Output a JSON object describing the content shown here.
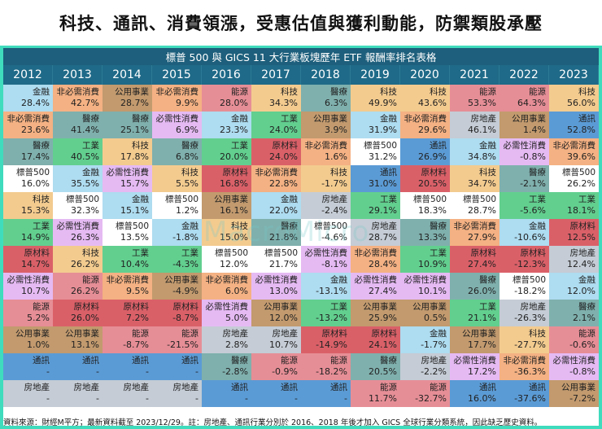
{
  "title": "科技、通訊、消費領漲，受惠估值與獲利動能，防禦類股承壓",
  "subtitle": "標普 500 與 GICS 11 大行業板塊歷年 ETF 報酬率排名表格",
  "watermark": "MacroMicro",
  "years": [
    "2012",
    "2013",
    "2014",
    "2015",
    "2016",
    "2017",
    "2018",
    "2019",
    "2020",
    "2021",
    "2022",
    "2023"
  ],
  "sector_colors": {
    "金融": "#aedcf0",
    "非必需消費": "#f4b183",
    "公用事業": "#c29a6e",
    "能源": "#e68e96",
    "科技": "#f3cb8f",
    "醫療": "#7fb0ad",
    "必需性消費": "#e5baf3",
    "工業": "#62cf8f",
    "原材料": "#da6068",
    "標普500": "#ffffff",
    "通訊": "#5b9bd5",
    "房地產": "#c5ccd5"
  },
  "rows": [
    [
      [
        "金融",
        "28.4%"
      ],
      [
        "非必需消費",
        "42.7%"
      ],
      [
        "公用事業",
        "28.7%"
      ],
      [
        "非必需消費",
        "9.9%"
      ],
      [
        "能源",
        "28.0%"
      ],
      [
        "科技",
        "34.3%"
      ],
      [
        "醫療",
        "6.3%"
      ],
      [
        "科技",
        "49.9%"
      ],
      [
        "科技",
        "43.6%"
      ],
      [
        "能源",
        "53.3%"
      ],
      [
        "能源",
        "64.3%"
      ],
      [
        "科技",
        "56.0%"
      ]
    ],
    [
      [
        "非必需消費",
        "23.6%"
      ],
      [
        "醫療",
        "41.4%"
      ],
      [
        "醫療",
        "25.1%"
      ],
      [
        "必需性消費",
        "6.9%"
      ],
      [
        "金融",
        "23.3%"
      ],
      [
        "工業",
        "24.0%"
      ],
      [
        "公用事業",
        "3.9%"
      ],
      [
        "金融",
        "31.9%"
      ],
      [
        "非必需消費",
        "29.6%"
      ],
      [
        "房地產",
        "46.1%"
      ],
      [
        "公用事業",
        "1.4%"
      ],
      [
        "通訊",
        "52.8%"
      ]
    ],
    [
      [
        "醫療",
        "17.4%"
      ],
      [
        "工業",
        "40.5%"
      ],
      [
        "科技",
        "17.8%"
      ],
      [
        "醫療",
        "6.8%"
      ],
      [
        "工業",
        "20.0%"
      ],
      [
        "原材料",
        "24.0%"
      ],
      [
        "非必需消費",
        "1.6%"
      ],
      [
        "標普500",
        "31.2%"
      ],
      [
        "通訊",
        "26.9%"
      ],
      [
        "金融",
        "34.8%"
      ],
      [
        "必需性消費",
        "-0.8%"
      ],
      [
        "非必需消費",
        "39.6%"
      ]
    ],
    [
      [
        "標普500",
        "16.0%"
      ],
      [
        "金融",
        "35.5%"
      ],
      [
        "必需性消費",
        "15.7%"
      ],
      [
        "科技",
        "5.5%"
      ],
      [
        "原材料",
        "16.8%"
      ],
      [
        "非必需消費",
        "22.8%"
      ],
      [
        "科技",
        "-1.7%"
      ],
      [
        "通訊",
        "31.0%"
      ],
      [
        "原材料",
        "20.5%"
      ],
      [
        "科技",
        "34.7%"
      ],
      [
        "醫療",
        "-2.1%"
      ],
      [
        "標普500",
        "26.2%"
      ]
    ],
    [
      [
        "科技",
        "15.3%"
      ],
      [
        "標普500",
        "32.3%"
      ],
      [
        "金融",
        "15.1%"
      ],
      [
        "標普500",
        "1.2%"
      ],
      [
        "公用事業",
        "16.1%"
      ],
      [
        "金融",
        "22.0%"
      ],
      [
        "房地產",
        "-2.4%"
      ],
      [
        "工業",
        "29.1%"
      ],
      [
        "標普500",
        "18.3%"
      ],
      [
        "標普500",
        "28.7%"
      ],
      [
        "工業",
        "-5.6%"
      ],
      [
        "工業",
        "18.1%"
      ]
    ],
    [
      [
        "工業",
        "14.9%"
      ],
      [
        "必需性消費",
        "26.3%"
      ],
      [
        "標普500",
        "13.5%"
      ],
      [
        "金融",
        "-1.8%"
      ],
      [
        "科技",
        "15.0%"
      ],
      [
        "醫療",
        "21.8%"
      ],
      [
        "標普500",
        "-4.6%"
      ],
      [
        "房地產",
        "28.7%"
      ],
      [
        "醫療",
        "13.3%"
      ],
      [
        "非必需消費",
        "27.9%"
      ],
      [
        "金融",
        "-10.6%"
      ],
      [
        "原材料",
        "12.5%"
      ]
    ],
    [
      [
        "原材料",
        "14.7%"
      ],
      [
        "科技",
        "26.2%"
      ],
      [
        "工業",
        "10.4%"
      ],
      [
        "工業",
        "-4.3%"
      ],
      [
        "標普500",
        "12.0%"
      ],
      [
        "標普500",
        "21.7%"
      ],
      [
        "必需性消費",
        "-8.1%"
      ],
      [
        "非必需消費",
        "28.4%"
      ],
      [
        "工業",
        "10.9%"
      ],
      [
        "原材料",
        "27.4%"
      ],
      [
        "原材料",
        "-12.3%"
      ],
      [
        "房地產",
        "12.4%"
      ]
    ],
    [
      [
        "必需性消費",
        "10.7%"
      ],
      [
        "能源",
        "26.2%"
      ],
      [
        "非必需消費",
        "9.5%"
      ],
      [
        "公用事業",
        "-4.9%"
      ],
      [
        "非必需消費",
        "6.0%"
      ],
      [
        "必需性消費",
        "13.0%"
      ],
      [
        "金融",
        "-13.1%"
      ],
      [
        "必需性消費",
        "27.4%"
      ],
      [
        "必需性消費",
        "10.1%"
      ],
      [
        "醫療",
        "26.0%"
      ],
      [
        "標普500",
        "-18.2%"
      ],
      [
        "金融",
        "12.0%"
      ]
    ],
    [
      [
        "能源",
        "5.2%"
      ],
      [
        "原材料",
        "26.0%"
      ],
      [
        "原材料",
        "7.2%"
      ],
      [
        "原材料",
        "-8.7%"
      ],
      [
        "必需性消費",
        "5.0%"
      ],
      [
        "公用事業",
        "12.0%"
      ],
      [
        "工業",
        "-13.2%"
      ],
      [
        "公用事業",
        "25.9%"
      ],
      [
        "公用事業",
        "0.5%"
      ],
      [
        "工業",
        "21.1%"
      ],
      [
        "房地產",
        "-26.3%"
      ],
      [
        "醫療",
        "2.1%"
      ]
    ],
    [
      [
        "公用事業",
        "1.0%"
      ],
      [
        "公用事業",
        "13.1%"
      ],
      [
        "能源",
        "-8.7%"
      ],
      [
        "能源",
        "-21.5%"
      ],
      [
        "房地產",
        "2.8%"
      ],
      [
        "房地產",
        "10.7%"
      ],
      [
        "原材料",
        "-14.9%"
      ],
      [
        "原材料",
        "24.1%"
      ],
      [
        "金融",
        "-1.7%"
      ],
      [
        "公用事業",
        "17.7%"
      ],
      [
        "科技",
        "-27.7%"
      ],
      [
        "能源",
        "-0.6%"
      ]
    ],
    [
      [
        "通訊",
        "-"
      ],
      [
        "通訊",
        "-"
      ],
      [
        "通訊",
        "-"
      ],
      [
        "通訊",
        "-"
      ],
      [
        "醫療",
        "-2.8%"
      ],
      [
        "能源",
        "-0.9%"
      ],
      [
        "能源",
        "-18.2%"
      ],
      [
        "醫療",
        "20.5%"
      ],
      [
        "房地產",
        "-2.2%"
      ],
      [
        "必需性消費",
        "17.2%"
      ],
      [
        "非必需消費",
        "-36.3%"
      ],
      [
        "必需性消費",
        "-0.8%"
      ]
    ],
    [
      [
        "房地產",
        "-"
      ],
      [
        "房地產",
        "-"
      ],
      [
        "房地產",
        "-"
      ],
      [
        "房地產",
        "-"
      ],
      [
        "通訊",
        "-"
      ],
      [
        "通訊",
        "-"
      ],
      [
        "通訊",
        "-"
      ],
      [
        "能源",
        "11.7%"
      ],
      [
        "能源",
        "-32.7%"
      ],
      [
        "通訊",
        "16.0%"
      ],
      [
        "通訊",
        "-37.6%"
      ],
      [
        "公用事業",
        "-7.2%"
      ]
    ]
  ],
  "footnote": "資料來源：財經M平方；最新資料截至 2023/12/29。註：房地產、通訊行業分別於 2016、2018 年後才加入 GICS 全球行業分類系統，因此缺乏歷史資料。"
}
